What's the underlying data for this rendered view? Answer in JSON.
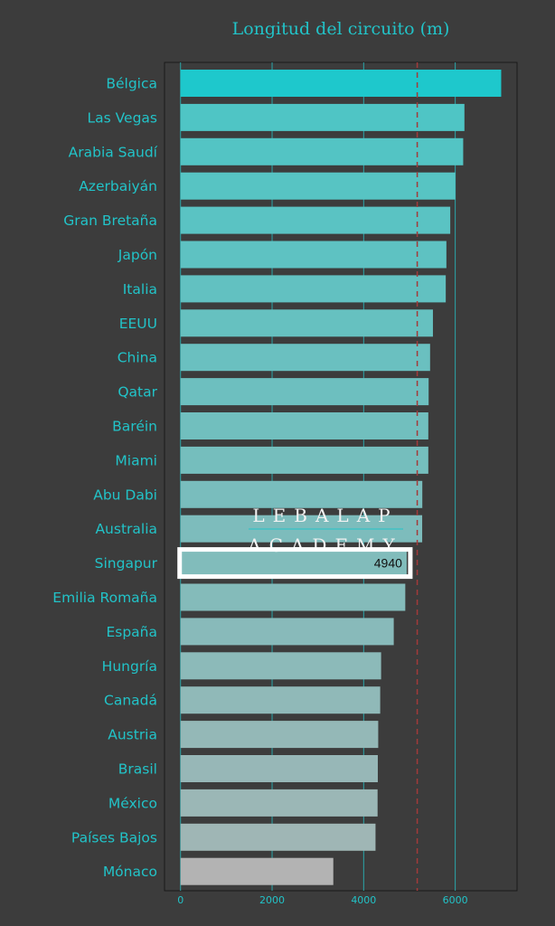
{
  "chart_data": {
    "type": "bar",
    "orientation": "horizontal",
    "title": "Longitud del circuito (m)",
    "categories": [
      "Bélgica",
      "Las Vegas",
      "Arabia Saudí",
      "Azerbaiyán",
      "Gran Bretaña",
      "Japón",
      "Italia",
      "EEUU",
      "China",
      "Qatar",
      "Baréin",
      "Miami",
      "Abu Dabi",
      "Australia",
      "Singapur",
      "Emilia Romaña",
      "España",
      "Hungría",
      "Canadá",
      "Austria",
      "Brasil",
      "México",
      "Países Bajos",
      "Mónaco"
    ],
    "values": [
      7004,
      6201,
      6174,
      6003,
      5891,
      5807,
      5793,
      5513,
      5451,
      5419,
      5412,
      5412,
      5281,
      5278,
      4940,
      4909,
      4657,
      4381,
      4361,
      4318,
      4309,
      4304,
      4259,
      3337
    ],
    "xlim": [
      -350,
      7350
    ],
    "xticks": [
      0,
      2000,
      4000,
      6000
    ],
    "reference_line": 5170,
    "highlight": {
      "category": "Singapur",
      "label": "4940"
    },
    "colors": {
      "max": "#1ec8cc",
      "min_bar": "#b3b3b3",
      "gradient_start": "#4fc5c5",
      "gradient_end": "#9fb6b5",
      "reference": "#a33a3a",
      "highlight_border": "#ffffff",
      "axis_text": "#22c3c8",
      "grid": "#2aa6a9"
    }
  },
  "watermark": {
    "line1": "LEBALAP",
    "line2": "ACADEMY"
  }
}
